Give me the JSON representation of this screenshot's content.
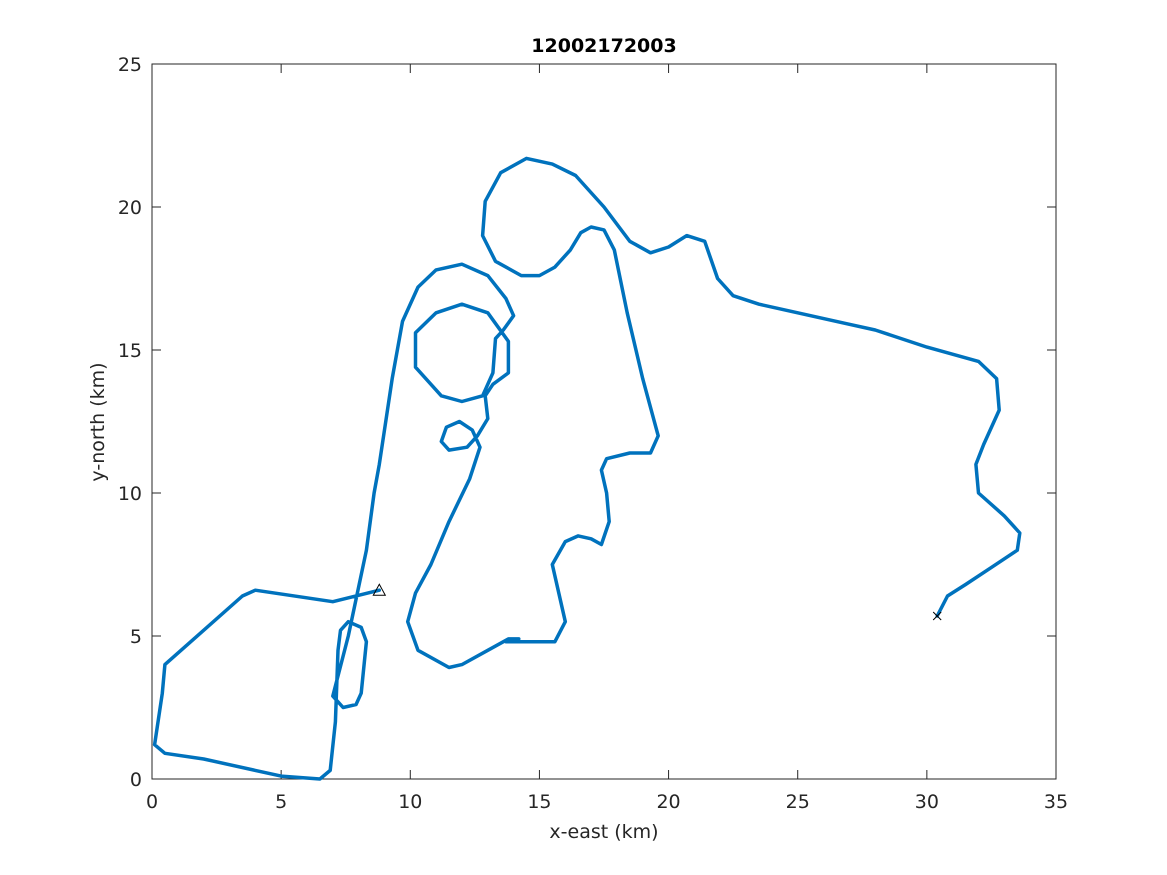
{
  "chart_data": {
    "type": "line",
    "title": "12002172003",
    "xlabel": "x-east (km)",
    "ylabel": "y-north (km)",
    "xlim": [
      0,
      35
    ],
    "ylim": [
      0,
      25
    ],
    "xticks": [
      0,
      5,
      10,
      15,
      20,
      25,
      30,
      35
    ],
    "yticks": [
      0,
      5,
      10,
      15,
      20,
      25
    ],
    "grid": false,
    "series": [
      {
        "color": "#0072bd",
        "x": [
          8.8,
          7.0,
          4.0,
          3.5,
          0.5,
          0.4,
          0.1,
          0.5,
          2.0,
          4.0,
          5.0,
          6.5,
          6.9,
          7.1,
          7.2,
          7.3,
          7.6,
          8.1,
          8.3,
          8.1,
          7.9,
          7.4,
          7.0,
          7.6,
          8.3,
          8.6,
          8.8,
          9.3,
          9.7,
          10.3,
          11.0,
          12.0,
          13.0,
          13.7,
          14.0,
          13.6,
          13.3,
          13.2,
          12.8,
          12.0,
          11.2,
          10.2,
          10.2,
          11.0,
          12.0,
          13.0,
          13.8,
          13.8,
          13.2,
          12.9,
          13.0,
          12.6,
          12.2,
          11.5,
          11.2,
          11.4,
          11.9,
          12.4,
          12.7,
          12.3,
          11.5,
          10.8,
          10.2,
          9.9,
          10.3,
          11.5,
          12.0,
          13.0,
          13.8,
          14.2,
          13.7,
          14.5,
          15.6,
          16.0,
          15.5,
          16.0,
          16.5,
          17.0,
          17.4,
          17.7,
          17.6,
          17.4,
          17.6,
          18.5,
          19.3,
          19.6,
          19.0,
          18.4,
          17.9,
          17.5,
          17.0,
          16.6,
          16.2,
          15.6,
          15.0,
          14.3,
          13.3,
          12.8,
          12.9,
          13.5,
          14.5,
          15.5,
          16.4,
          17.5,
          18.5,
          19.3,
          20.0,
          20.7,
          21.4,
          21.9,
          22.5,
          23.5,
          25.0,
          27.0,
          28.0,
          30.0,
          32.0,
          32.7,
          32.8,
          32.2,
          31.9,
          32.0,
          33.0,
          33.6,
          33.5,
          32.5,
          31.5,
          30.8,
          30.4
        ],
        "y": [
          6.6,
          6.2,
          6.6,
          6.4,
          4.0,
          3.0,
          1.2,
          0.9,
          0.7,
          0.3,
          0.1,
          0.0,
          0.3,
          2.0,
          4.5,
          5.2,
          5.5,
          5.3,
          4.8,
          3.0,
          2.6,
          2.5,
          2.9,
          5.0,
          8.0,
          10.0,
          11.0,
          14.0,
          16.0,
          17.2,
          17.8,
          18.0,
          17.6,
          16.8,
          16.2,
          15.7,
          15.4,
          14.2,
          13.4,
          13.2,
          13.4,
          14.4,
          15.6,
          16.3,
          16.6,
          16.3,
          15.3,
          14.2,
          13.8,
          13.4,
          12.6,
          12.0,
          11.6,
          11.5,
          11.8,
          12.3,
          12.5,
          12.2,
          11.6,
          10.5,
          9.0,
          7.5,
          6.5,
          5.5,
          4.5,
          3.9,
          4.0,
          4.5,
          4.9,
          4.9,
          4.8,
          4.8,
          4.8,
          5.5,
          7.5,
          8.3,
          8.5,
          8.4,
          8.2,
          9.0,
          10.0,
          10.8,
          11.2,
          11.4,
          11.4,
          12.0,
          14.0,
          16.3,
          18.5,
          19.2,
          19.3,
          19.1,
          18.5,
          17.9,
          17.6,
          17.6,
          18.1,
          19.0,
          20.2,
          21.2,
          21.7,
          21.5,
          21.1,
          20.0,
          18.8,
          18.4,
          18.6,
          19.0,
          18.8,
          17.5,
          16.9,
          16.6,
          16.3,
          15.9,
          15.7,
          15.1,
          14.6,
          14.0,
          12.9,
          11.7,
          11.0,
          10.0,
          9.2,
          8.6,
          8.0,
          7.4,
          6.8,
          6.4,
          5.7
        ]
      }
    ],
    "markers": [
      {
        "symbol": "triangle",
        "x": 8.8,
        "y": 6.6
      },
      {
        "symbol": "cross",
        "x": 30.4,
        "y": 5.7
      }
    ]
  }
}
